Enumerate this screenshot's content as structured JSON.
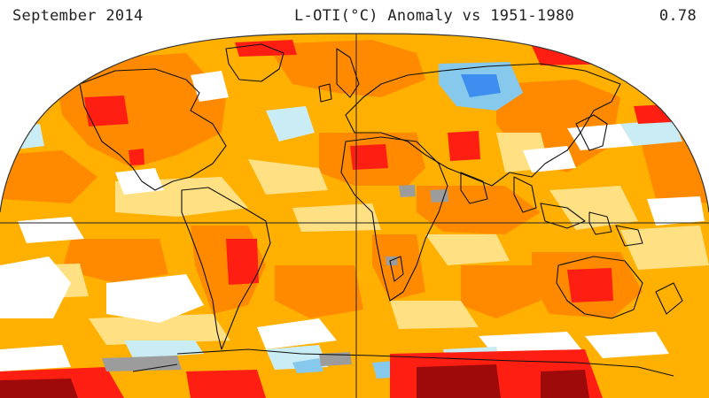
{
  "header": {
    "date": "September 2014",
    "title": "L-OTI(°C) Anomaly vs 1951-1980",
    "global_mean": "0.78"
  },
  "map": {
    "projection": "robinson",
    "colors": {
      "ocean_base": "#ffb000",
      "orange": "#ff8a00",
      "red": "#ff1f12",
      "dark_red": "#9e0a0a",
      "yellow": "#ffe082",
      "white": "#ffffff",
      "light_blue": "#c9ecf5",
      "cyan": "#86c9ec",
      "blue": "#3e8ef0",
      "gray": "#9c9c9c",
      "coastline": "#111111"
    }
  }
}
